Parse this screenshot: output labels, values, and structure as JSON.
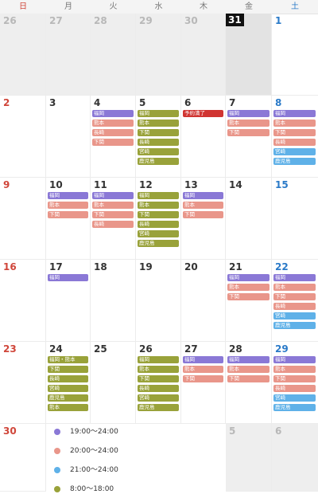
{
  "weekdays": [
    "日",
    "月",
    "火",
    "水",
    "木",
    "金",
    "土"
  ],
  "colors": {
    "purple": "#8a78d6",
    "salmon": "#e9968a",
    "blue": "#5fb1e8",
    "olive": "#99a23a",
    "red": "#d03431",
    "sunday": "#d0463a",
    "saturday": "#2a7ac8"
  },
  "weeks": [
    [
      {
        "day": "26",
        "other": true,
        "events": []
      },
      {
        "day": "27",
        "other": true,
        "events": []
      },
      {
        "day": "28",
        "other": true,
        "events": []
      },
      {
        "day": "29",
        "other": true,
        "events": []
      },
      {
        "day": "30",
        "other": true,
        "events": []
      },
      {
        "day": "31",
        "today": true,
        "events": []
      },
      {
        "day": "1",
        "events": []
      }
    ],
    [
      {
        "day": "2",
        "events": []
      },
      {
        "day": "3",
        "events": []
      },
      {
        "day": "4",
        "events": [
          {
            "label": "福岡",
            "color": "purple"
          },
          {
            "label": "熊本",
            "color": "salmon"
          },
          {
            "label": "長崎",
            "color": "salmon"
          },
          {
            "label": "下関",
            "color": "salmon"
          }
        ]
      },
      {
        "day": "5",
        "events": [
          {
            "label": "福岡",
            "color": "olive"
          },
          {
            "label": "熊本",
            "color": "olive"
          },
          {
            "label": "下関",
            "color": "olive"
          },
          {
            "label": "長崎",
            "color": "olive"
          },
          {
            "label": "宮崎",
            "color": "olive"
          },
          {
            "label": "鹿児島",
            "color": "olive"
          }
        ]
      },
      {
        "day": "6",
        "events": [
          {
            "label": "予約満了",
            "color": "red"
          }
        ]
      },
      {
        "day": "7",
        "events": [
          {
            "label": "福岡",
            "color": "purple"
          },
          {
            "label": "熊本",
            "color": "salmon"
          },
          {
            "label": "下関",
            "color": "salmon"
          }
        ]
      },
      {
        "day": "8",
        "events": [
          {
            "label": "福岡",
            "color": "purple"
          },
          {
            "label": "熊本",
            "color": "salmon"
          },
          {
            "label": "下関",
            "color": "salmon"
          },
          {
            "label": "長崎",
            "color": "salmon"
          },
          {
            "label": "宮崎",
            "color": "blue"
          },
          {
            "label": "鹿児島",
            "color": "blue"
          }
        ]
      }
    ],
    [
      {
        "day": "9",
        "events": []
      },
      {
        "day": "10",
        "events": [
          {
            "label": "福岡",
            "color": "purple"
          },
          {
            "label": "熊本",
            "color": "salmon"
          },
          {
            "label": "下関",
            "color": "salmon"
          }
        ]
      },
      {
        "day": "11",
        "events": [
          {
            "label": "福岡",
            "color": "purple"
          },
          {
            "label": "熊本",
            "color": "salmon"
          },
          {
            "label": "下関",
            "color": "salmon"
          },
          {
            "label": "長崎",
            "color": "salmon"
          }
        ]
      },
      {
        "day": "12",
        "events": [
          {
            "label": "福岡",
            "color": "olive"
          },
          {
            "label": "熊本",
            "color": "olive"
          },
          {
            "label": "下関",
            "color": "olive"
          },
          {
            "label": "長崎",
            "color": "olive"
          },
          {
            "label": "宮崎",
            "color": "olive"
          },
          {
            "label": "鹿児島",
            "color": "olive"
          }
        ]
      },
      {
        "day": "13",
        "events": [
          {
            "label": "福岡",
            "color": "purple"
          },
          {
            "label": "熊本",
            "color": "salmon"
          },
          {
            "label": "下関",
            "color": "salmon"
          }
        ]
      },
      {
        "day": "14",
        "events": []
      },
      {
        "day": "15",
        "events": []
      }
    ],
    [
      {
        "day": "16",
        "events": []
      },
      {
        "day": "17",
        "events": [
          {
            "label": "福岡",
            "color": "purple"
          }
        ]
      },
      {
        "day": "18",
        "events": []
      },
      {
        "day": "19",
        "events": []
      },
      {
        "day": "20",
        "events": []
      },
      {
        "day": "21",
        "events": [
          {
            "label": "福岡",
            "color": "purple"
          },
          {
            "label": "熊本",
            "color": "salmon"
          },
          {
            "label": "下関",
            "color": "salmon"
          }
        ]
      },
      {
        "day": "22",
        "events": [
          {
            "label": "福岡",
            "color": "purple"
          },
          {
            "label": "熊本",
            "color": "salmon"
          },
          {
            "label": "下関",
            "color": "salmon"
          },
          {
            "label": "長崎",
            "color": "salmon"
          },
          {
            "label": "宮崎",
            "color": "blue"
          },
          {
            "label": "鹿児島",
            "color": "blue"
          }
        ]
      }
    ],
    [
      {
        "day": "23",
        "events": []
      },
      {
        "day": "24",
        "events": [
          {
            "label": "福岡・熊本",
            "color": "olive"
          },
          {
            "label": "下関",
            "color": "olive"
          },
          {
            "label": "長崎",
            "color": "olive"
          },
          {
            "label": "宮崎",
            "color": "olive"
          },
          {
            "label": "鹿児島",
            "color": "olive"
          },
          {
            "label": "熊本",
            "color": "olive"
          }
        ]
      },
      {
        "day": "25",
        "events": []
      },
      {
        "day": "26",
        "events": [
          {
            "label": "福岡",
            "color": "olive"
          },
          {
            "label": "熊本",
            "color": "olive"
          },
          {
            "label": "下関",
            "color": "olive"
          },
          {
            "label": "長崎",
            "color": "olive"
          },
          {
            "label": "宮崎",
            "color": "olive"
          },
          {
            "label": "鹿児島",
            "color": "olive"
          }
        ]
      },
      {
        "day": "27",
        "events": [
          {
            "label": "福岡",
            "color": "purple"
          },
          {
            "label": "熊本",
            "color": "salmon"
          },
          {
            "label": "下関",
            "color": "salmon"
          }
        ]
      },
      {
        "day": "28",
        "events": [
          {
            "label": "福岡",
            "color": "purple"
          },
          {
            "label": "熊本",
            "color": "salmon"
          },
          {
            "label": "下関",
            "color": "salmon"
          }
        ]
      },
      {
        "day": "29",
        "events": [
          {
            "label": "福岡",
            "color": "purple"
          },
          {
            "label": "熊本",
            "color": "salmon"
          },
          {
            "label": "下関",
            "color": "salmon"
          },
          {
            "label": "長崎",
            "color": "salmon"
          },
          {
            "label": "宮崎",
            "color": "blue"
          },
          {
            "label": "鹿児島",
            "color": "blue"
          }
        ]
      }
    ]
  ],
  "last_week": {
    "sun": "30",
    "fri": "5",
    "sat": "6"
  },
  "legend": [
    {
      "color": "purple",
      "text": "19:00～24:00"
    },
    {
      "color": "salmon",
      "text": "20:00～24:00"
    },
    {
      "color": "blue",
      "text": "21:00～24:00"
    },
    {
      "color": "olive",
      "text": "8:00～18:00"
    }
  ]
}
